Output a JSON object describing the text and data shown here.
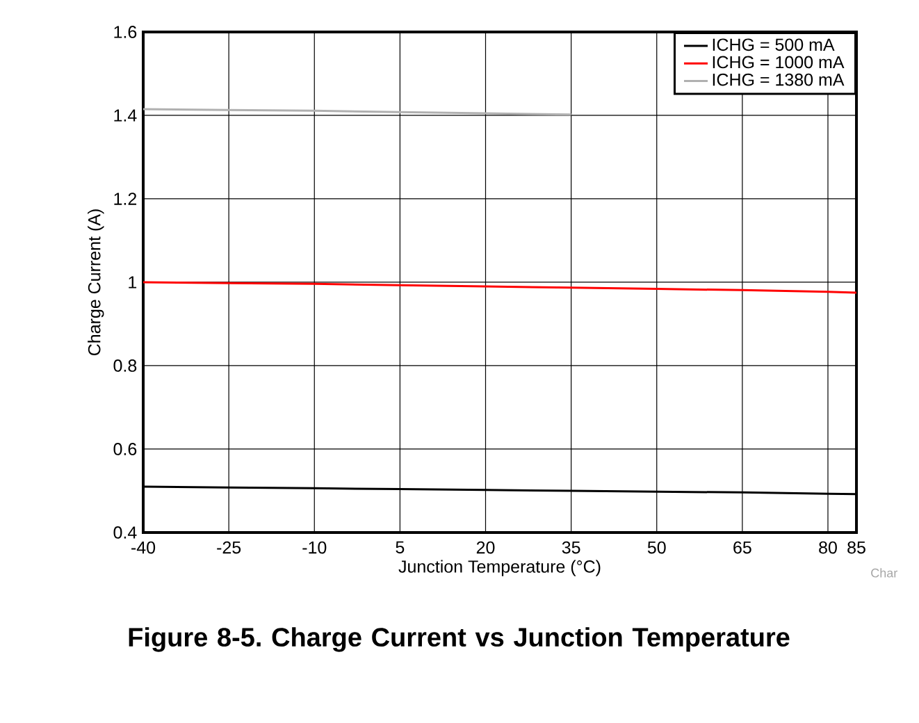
{
  "chart_data": {
    "type": "line",
    "title": "Figure 8-5. Charge Current vs Junction Temperature",
    "xlabel": "Junction Temperature (°C)",
    "ylabel": "Charge Current (A)",
    "annotations": [
      "Char"
    ],
    "x": [
      -40,
      -25,
      -10,
      5,
      20,
      35,
      50,
      65,
      80,
      85
    ],
    "series": [
      {
        "name": "ICHG = 500 mA",
        "color": "#000000",
        "values": [
          0.51,
          0.508,
          0.506,
          0.504,
          0.502,
          0.5,
          0.498,
          0.496,
          0.493,
          0.492
        ]
      },
      {
        "name": "ICHG = 1000 mA",
        "color": "#ff0000",
        "values": [
          1.0,
          0.998,
          0.996,
          0.993,
          0.99,
          0.987,
          0.984,
          0.981,
          0.977,
          0.975
        ]
      },
      {
        "name": "ICHG = 1380 mA",
        "color": "#b0b0b0",
        "values": [
          1.415,
          1.413,
          1.411,
          1.408,
          1.405,
          1.402,
          null,
          null,
          null,
          null
        ]
      }
    ],
    "xlim": [
      -40,
      85
    ],
    "ylim": [
      0.4,
      1.6
    ],
    "xticks": [
      -40,
      -25,
      -10,
      5,
      20,
      35,
      50,
      65,
      80,
      85
    ],
    "yticks": [
      0.4,
      0.6,
      0.8,
      1,
      1.2,
      1.4,
      1.6
    ],
    "grid": true,
    "legend": "top right",
    "marker": "none",
    "line_style": "solid"
  }
}
